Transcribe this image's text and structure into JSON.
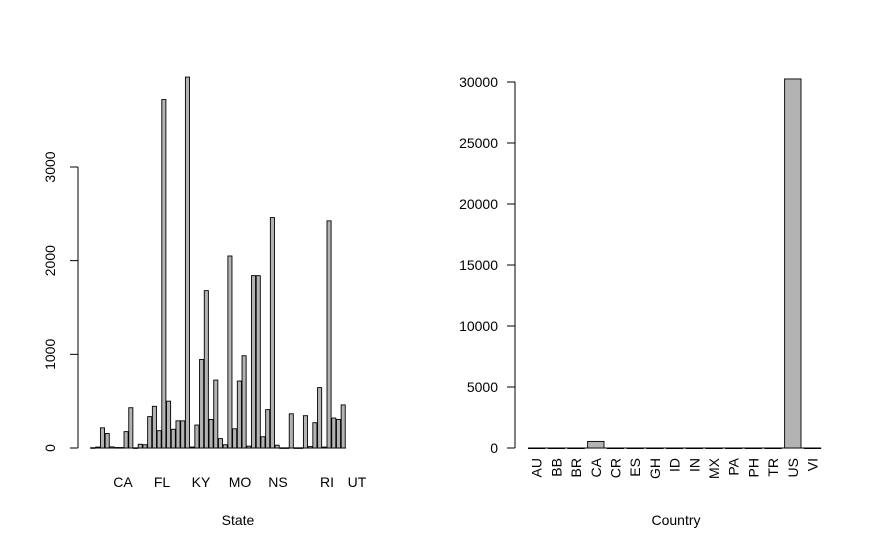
{
  "chart_data": [
    {
      "type": "bar",
      "xlabel": "State",
      "ylabel": "",
      "ylim": [
        0,
        4000
      ],
      "yticks": [
        0,
        1000,
        2000,
        3000
      ],
      "visible_xticklabels": [
        "CA",
        "FL",
        "KY",
        "MO",
        "NS",
        "RI",
        "UT"
      ],
      "bar_fill": "#b3b3b3",
      "values": [
        3,
        10,
        215,
        155,
        12,
        5,
        5,
        175,
        430,
        2,
        40,
        35,
        335,
        445,
        185,
        3720,
        500,
        200,
        290,
        290,
        3960,
        10,
        245,
        945,
        1680,
        305,
        725,
        100,
        35,
        2050,
        205,
        715,
        985,
        20,
        1840,
        1840,
        120,
        410,
        2460,
        30,
        2,
        2,
        365,
        2,
        2,
        345,
        15,
        270,
        645,
        10,
        2425,
        320,
        305,
        460
      ]
    },
    {
      "type": "bar",
      "xlabel": "Country",
      "ylabel": "",
      "ylim": [
        0,
        30000
      ],
      "yticks": [
        0,
        5000,
        10000,
        15000,
        20000,
        25000,
        30000
      ],
      "bar_fill": "#b3b3b3",
      "categories": [
        "AU",
        "BB",
        "BR",
        "CA",
        "CR",
        "ES",
        "GH",
        "ID",
        "IN",
        "MX",
        "PA",
        "PH",
        "TR",
        "US",
        "VI"
      ],
      "values": [
        3,
        3,
        3,
        540,
        3,
        3,
        3,
        3,
        3,
        3,
        3,
        3,
        3,
        30250,
        3
      ]
    }
  ]
}
